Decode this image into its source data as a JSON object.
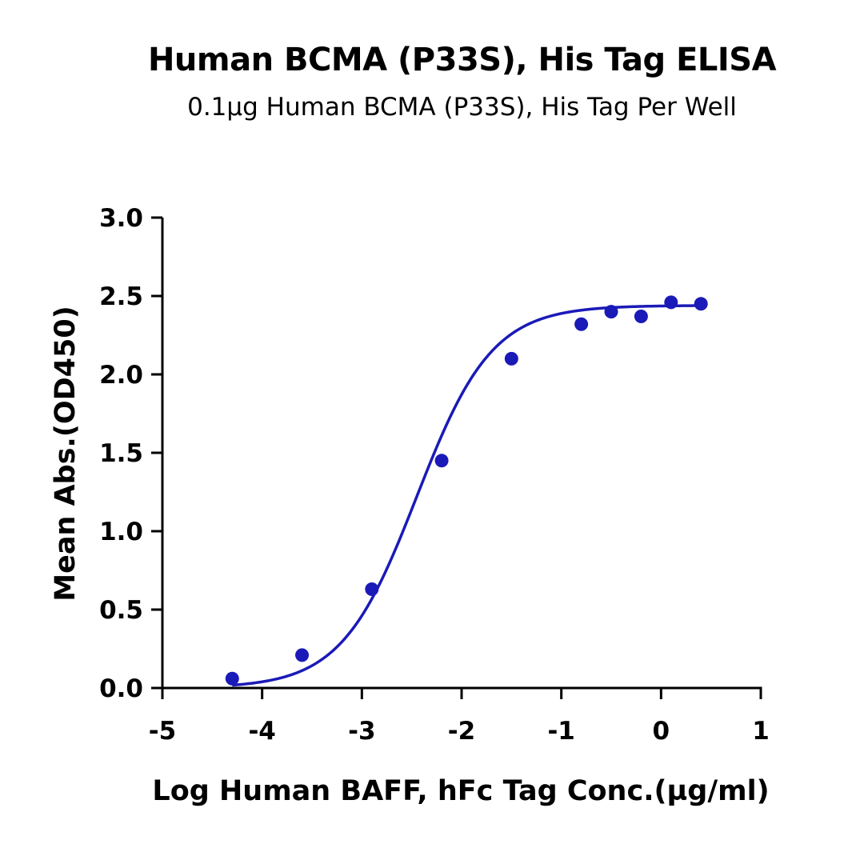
{
  "chart_data": {
    "type": "scatter",
    "title": "Human BCMA (P33S), His Tag ELISA",
    "subtitle": "0.1µg Human BCMA (P33S), His Tag Per Well",
    "xlabel": "Log Human BAFF, hFc Tag Conc.(µg/ml)",
    "ylabel": "Mean Abs.(OD450)",
    "xlim": [
      -5,
      1
    ],
    "ylim": [
      0,
      3.0
    ],
    "x_ticks": [
      -5,
      -4,
      -3,
      -2,
      -1,
      0,
      1
    ],
    "x_tick_labels": [
      "-5",
      "-4",
      "-3",
      "-2",
      "-1",
      "0",
      "1"
    ],
    "y_ticks": [
      0,
      0.5,
      1.0,
      1.5,
      2.0,
      2.5,
      3.0
    ],
    "y_tick_labels": [
      "0.0",
      "0.5",
      "1.0",
      "1.5",
      "2.0",
      "2.5",
      "3.0"
    ],
    "grid": false,
    "legend": "none",
    "color": "#1a1ab8",
    "series": [
      {
        "x": [
          -4.3,
          -3.6,
          -2.9,
          -2.2,
          -1.5,
          -0.8,
          -0.5,
          -0.2,
          0.1,
          0.4
        ],
        "y": [
          0.06,
          0.21,
          0.63,
          1.45,
          2.1,
          2.32,
          2.4,
          2.37,
          2.46,
          2.45
        ],
        "fit": "4PL sigmoid"
      }
    ]
  }
}
